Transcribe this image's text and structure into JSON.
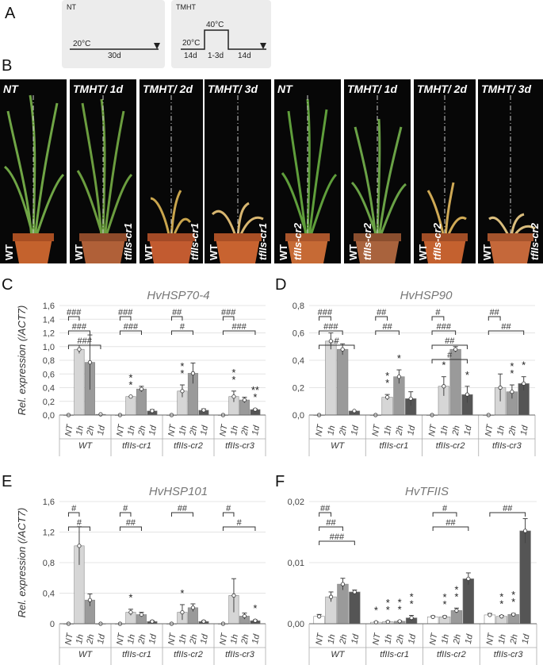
{
  "panel_labels": [
    "A",
    "B",
    "C",
    "D",
    "E",
    "F"
  ],
  "schedule": {
    "nt": {
      "title": "NT",
      "temp": "20°C",
      "duration": "30d"
    },
    "tmht": {
      "title": "TMHT",
      "temp1": "20°C",
      "temp2": "40°C",
      "d1": "14d",
      "d2": "1-3d",
      "d3": "14d"
    }
  },
  "photos": [
    {
      "title": "NT",
      "left": "WT",
      "right": ""
    },
    {
      "title": "TMHT/ 1d",
      "left": "WT",
      "right": "tfIIs-cr1"
    },
    {
      "title": "TMHT/ 2d",
      "left": "WT",
      "right": "tfIIs-cr1"
    },
    {
      "title": "TMHT/ 3d",
      "left": "WT",
      "right": "tfIIs-cr1"
    },
    {
      "title": "NT",
      "left": "WT",
      "right": "tfIIs-cr2"
    },
    {
      "title": "TMHT/ 1d",
      "left": "WT",
      "right": "tfIIs-cr2"
    },
    {
      "title": "TMHT/ 2d",
      "left": "WT",
      "right": "tfIIs-cr2"
    },
    {
      "title": "TMHT/ 3d",
      "left": "WT",
      "right": "tfIIs-cr2"
    }
  ],
  "colors": {
    "nt": "#ffffff",
    "h1": "#d6d6d6",
    "h2": "#9a9a9a",
    "d1": "#555555"
  },
  "chart_data": [
    {
      "type": "bar",
      "panel": "C",
      "title": "HvHSP70-4",
      "ylabel": "Rel. expression (/ACT7)",
      "ylim": [
        0,
        1.6
      ],
      "yticks": [
        "0,0",
        "0,2",
        "0,4",
        "0,6",
        "0,8",
        "1,0",
        "1,2",
        "1,4",
        "1,6"
      ],
      "conditions": [
        "NT",
        "1h",
        "2h",
        "1d"
      ],
      "groups": [
        "WT",
        "tfIIs-cr1",
        "tfIIs-cr2",
        "tfIIs-cr3"
      ],
      "values": [
        [
          0.0,
          0.96,
          0.77,
          0.01
        ],
        [
          0.0,
          0.27,
          0.38,
          0.06
        ],
        [
          0.0,
          0.35,
          0.61,
          0.07
        ],
        [
          0.0,
          0.27,
          0.22,
          0.08
        ]
      ],
      "errors": [
        [
          0.0,
          0.06,
          0.4,
          0.0
        ],
        [
          0.0,
          0.0,
          0.04,
          0.02
        ],
        [
          0.0,
          0.09,
          0.15,
          0.02
        ],
        [
          0.0,
          0.08,
          0.04,
          0.01
        ]
      ],
      "stars": [
        [
          "",
          "",
          "",
          ""
        ],
        [
          "",
          "**",
          "",
          ""
        ],
        [
          "",
          "**",
          "",
          ""
        ],
        [
          "",
          "**",
          "",
          "***"
        ]
      ],
      "brackets": [
        {
          "group": "WT",
          "to": "1h",
          "text": "###"
        },
        {
          "group": "WT",
          "to": "2h",
          "text": "###"
        },
        {
          "group": "WT",
          "to": "1d",
          "text": "###"
        },
        {
          "group": "tfIIs-cr1",
          "to": "1h",
          "text": "###"
        },
        {
          "group": "tfIIs-cr1",
          "to": "2h",
          "text": "###"
        },
        {
          "group": "tfIIs-cr2",
          "to": "1h",
          "text": "##"
        },
        {
          "group": "tfIIs-cr2",
          "to": "2h",
          "text": "#"
        },
        {
          "group": "tfIIs-cr3",
          "to": "1h",
          "text": "###"
        },
        {
          "group": "tfIIs-cr3",
          "to": "1d",
          "text": "###"
        }
      ]
    },
    {
      "type": "bar",
      "panel": "D",
      "title": "HvHSP90",
      "ylabel": "",
      "ylim": [
        0,
        0.8
      ],
      "yticks": [
        "0,0",
        "0,2",
        "0,4",
        "0,6",
        "0,8"
      ],
      "conditions": [
        "NT",
        "1h",
        "2h",
        "1d"
      ],
      "groups": [
        "WT",
        "tfIIs-cr1",
        "tfIIs-cr2",
        "tfIIs-cr3"
      ],
      "values": [
        [
          0.0,
          0.54,
          0.48,
          0.03
        ],
        [
          0.0,
          0.13,
          0.28,
          0.12
        ],
        [
          0.0,
          0.21,
          0.48,
          0.15
        ],
        [
          0.0,
          0.2,
          0.17,
          0.23
        ]
      ],
      "errors": [
        [
          0.0,
          0.06,
          0.04,
          0.0
        ],
        [
          0.0,
          0.02,
          0.05,
          0.05
        ],
        [
          0.0,
          0.07,
          0.02,
          0.06
        ],
        [
          0.0,
          0.1,
          0.05,
          0.05
        ]
      ],
      "stars": [
        [
          "",
          "",
          "",
          ""
        ],
        [
          "",
          "**",
          "*",
          ""
        ],
        [
          "",
          "*",
          "",
          "*"
        ],
        [
          "",
          "",
          "**",
          "*"
        ]
      ],
      "brackets": [
        {
          "group": "WT",
          "to": "1h",
          "text": "###"
        },
        {
          "group": "WT",
          "to": "2h",
          "text": "###"
        },
        {
          "group": "WT",
          "to": "1d",
          "text": "#"
        },
        {
          "group": "tfIIs-cr1",
          "to": "1h",
          "text": "##"
        },
        {
          "group": "tfIIs-cr1",
          "to": "2h",
          "text": "##"
        },
        {
          "group": "tfIIs-cr2",
          "to": "1h",
          "text": "#"
        },
        {
          "group": "tfIIs-cr2",
          "to": "2h",
          "text": "###"
        },
        {
          "group": "tfIIs-cr2",
          "to": "1d",
          "text": "##"
        },
        {
          "group": "tfIIs-cr2",
          "to": "1d",
          "text": "#"
        },
        {
          "group": "tfIIs-cr3",
          "to": "1h",
          "text": "##"
        },
        {
          "group": "tfIIs-cr3",
          "to": "1d",
          "text": "##"
        }
      ]
    },
    {
      "type": "bar",
      "panel": "E",
      "title": "HvHSP101",
      "ylabel": "Rel. expression (/ACT7)",
      "ylim": [
        0,
        1.6
      ],
      "yticks": [
        "0",
        "0,4",
        "0,8",
        "1,2",
        "1,6"
      ],
      "conditions": [
        "NT",
        "1h",
        "2h",
        "1d"
      ],
      "groups": [
        "WT",
        "tfIIs-cr1",
        "tfIIs-cr2",
        "tfIIs-cr3"
      ],
      "values": [
        [
          0.0,
          1.02,
          0.31,
          0.0
        ],
        [
          0.0,
          0.15,
          0.12,
          0.03
        ],
        [
          0.0,
          0.15,
          0.21,
          0.03
        ],
        [
          0.0,
          0.37,
          0.1,
          0.04
        ]
      ],
      "errors": [
        [
          0.0,
          0.25,
          0.08,
          0.0
        ],
        [
          0.0,
          0.04,
          0.03,
          0.01
        ],
        [
          0.0,
          0.1,
          0.05,
          0.01
        ],
        [
          0.0,
          0.22,
          0.04,
          0.01
        ]
      ],
      "stars": [
        [
          "",
          "",
          "",
          ""
        ],
        [
          "",
          "*",
          "",
          ""
        ],
        [
          "",
          "*",
          "",
          ""
        ],
        [
          "",
          "",
          "",
          "*"
        ]
      ],
      "brackets": [
        {
          "group": "WT",
          "to": "1h",
          "text": "#"
        },
        {
          "group": "WT",
          "to": "2h",
          "text": "#"
        },
        {
          "group": "tfIIs-cr1",
          "to": "1h",
          "text": "#"
        },
        {
          "group": "tfIIs-cr1",
          "to": "2h",
          "text": "##"
        },
        {
          "group": "tfIIs-cr2",
          "to": "2h",
          "text": "##"
        },
        {
          "group": "tfIIs-cr3",
          "to": "1h",
          "text": "#"
        },
        {
          "group": "tfIIs-cr3",
          "to": "1d",
          "text": "#"
        }
      ]
    },
    {
      "type": "bar",
      "panel": "F",
      "title": "HvTFIIS",
      "ylabel": "",
      "ylim": [
        0,
        0.025
      ],
      "yticks": [
        "0,00",
        "0,01",
        "0,02"
      ],
      "conditions": [
        "NT",
        "1h",
        "2h",
        "1d"
      ],
      "groups": [
        "WT",
        "tfIIs-cr1",
        "tfIIs-cr2",
        "tfIIs-cr3"
      ],
      "values": [
        [
          0.0015,
          0.0055,
          0.0081,
          0.0065
        ],
        [
          0.0003,
          0.0004,
          0.0005,
          0.0012
        ],
        [
          0.0014,
          0.0014,
          0.0027,
          0.0092
        ],
        [
          0.0018,
          0.0015,
          0.0019,
          0.019
        ]
      ],
      "errors": [
        [
          0.0004,
          0.001,
          0.0012,
          0.0004
        ],
        [
          0.0001,
          0.0001,
          0.0001,
          0.0005
        ],
        [
          0.0002,
          0.0002,
          0.0005,
          0.0012
        ],
        [
          0.0003,
          0.0002,
          0.0002,
          0.0025
        ]
      ],
      "stars": [
        [
          "",
          "",
          "",
          ""
        ],
        [
          "*",
          "**",
          "**",
          "**"
        ],
        [
          "",
          "**",
          "**",
          ""
        ],
        [
          "",
          "**",
          "**",
          ""
        ]
      ],
      "brackets": [
        {
          "group": "WT",
          "to": "1h",
          "text": "##"
        },
        {
          "group": "WT",
          "to": "2h",
          "text": "##"
        },
        {
          "group": "WT",
          "to": "1d",
          "text": "###"
        },
        {
          "group": "tfIIs-cr2",
          "to": "2h",
          "text": "#"
        },
        {
          "group": "tfIIs-cr2",
          "to": "1d",
          "text": "##"
        },
        {
          "group": "tfIIs-cr3",
          "to": "1d",
          "text": "##"
        }
      ]
    }
  ]
}
